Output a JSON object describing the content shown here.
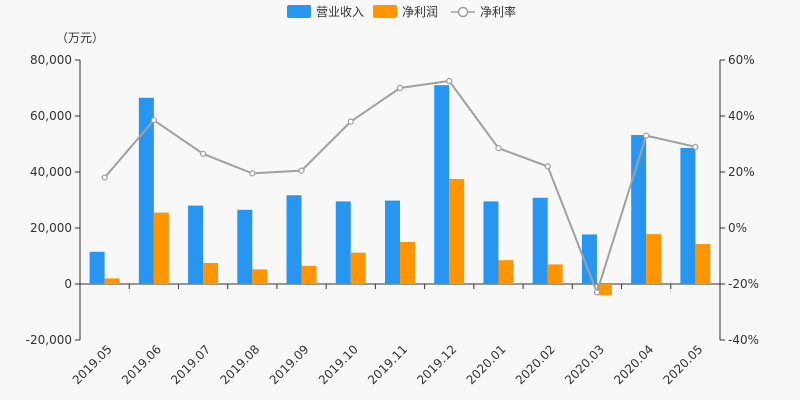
{
  "chart_data": {
    "type": "bar",
    "unit_label": "（万元）",
    "categories": [
      "2019.05",
      "2019.06",
      "2019.07",
      "2019.08",
      "2019.09",
      "2019.10",
      "2019.11",
      "2019.12",
      "2020.01",
      "2020.02",
      "2020.03",
      "2020.04",
      "2020.05"
    ],
    "series": [
      {
        "name": "营业收入",
        "type": "bar",
        "axis": "left",
        "color": "#2896f0",
        "values": [
          11500,
          66500,
          28000,
          26500,
          31700,
          29500,
          29800,
          71000,
          29500,
          30800,
          17700,
          53200,
          48600
        ]
      },
      {
        "name": "净利润",
        "type": "bar",
        "axis": "left",
        "color": "#ff9500",
        "values": [
          2000,
          25500,
          7500,
          5200,
          6500,
          11200,
          15000,
          37500,
          8500,
          7000,
          -4000,
          17800,
          14300
        ]
      },
      {
        "name": "净利率",
        "type": "line",
        "axis": "right",
        "color": "#a0a0a0",
        "values": [
          18,
          38.5,
          26.5,
          19.5,
          20.5,
          38,
          50,
          52.5,
          28.5,
          22,
          -23,
          33,
          29
        ]
      }
    ],
    "y_left": {
      "min": -20000,
      "max": 80000,
      "ticks": [
        "-20,000",
        "0",
        "20,000",
        "40,000",
        "60,000",
        "80,000"
      ]
    },
    "y_right": {
      "min": -40,
      "max": 60,
      "ticks": [
        "-40%",
        "-20%",
        "0%",
        "20%",
        "40%",
        "60%"
      ]
    },
    "grid": false,
    "legend_position": "top-center"
  }
}
